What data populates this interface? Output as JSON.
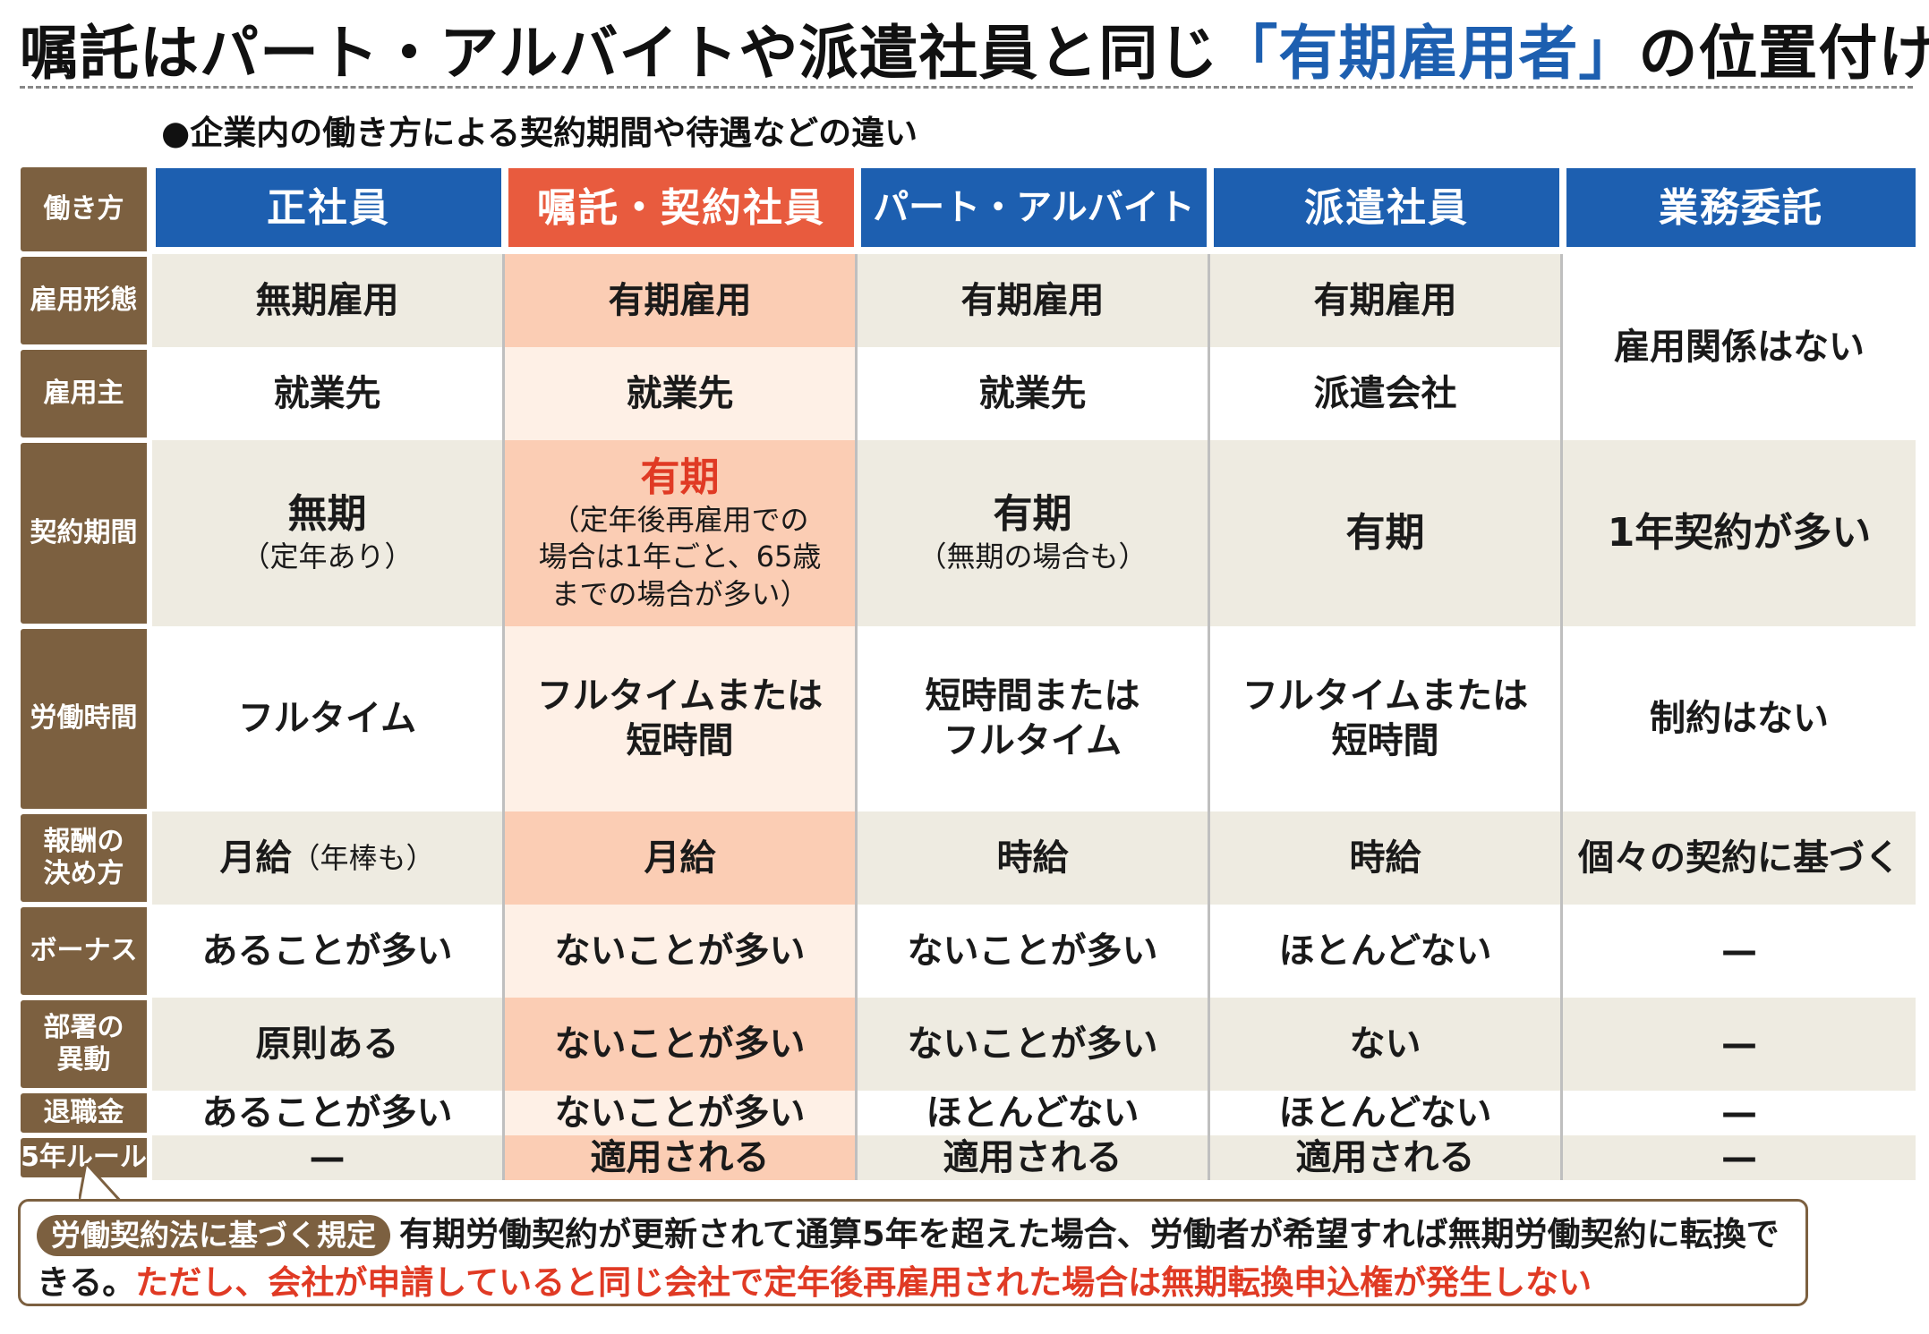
{
  "title": {
    "prefix": "嘱託はパート・アルバイトや派遣社員と同じ",
    "highlight": "「有期雇用者」",
    "suffix": "の位置付け"
  },
  "subtitle": "●企業内の働き方による契約期間や待遇などの違い",
  "table": {
    "corner_label": "働き方",
    "columns": [
      "正社員",
      "嘱託・契約社員",
      "パート・アルバイト",
      "派遣社員",
      "業務委託"
    ],
    "row_labels": [
      "雇用形態",
      "雇用主",
      "契約期間",
      "労働時間",
      "報酬の\n決め方",
      "ボーナス",
      "部署の\n異動",
      "退職金",
      "5年ルール"
    ],
    "employment_type": [
      "無期雇用",
      "有期雇用",
      "有期雇用",
      "有期雇用"
    ],
    "employer": [
      "就業先",
      "就業先",
      "就業先",
      "派遣会社"
    ],
    "contracting_merged": "雇用関係はない",
    "contract_period": [
      {
        "main": "無期",
        "note": "（定年あり）"
      },
      {
        "main": "有期",
        "note": "（定年後再雇用での\n場合は1年ごと、65歳\nまでの場合が多い）"
      },
      {
        "main": "有期",
        "note": "（無期の場合も）"
      },
      {
        "main": "有期",
        "note": ""
      },
      {
        "main": "1年契約が多い",
        "note": ""
      }
    ],
    "working_hours": [
      "フルタイム",
      "フルタイムまたは\n短時間",
      "短時間または\nフルタイム",
      "フルタイムまたは\n短時間",
      "制約はない"
    ],
    "pay_method": [
      {
        "main": "月給",
        "note": "（年棒も）"
      },
      {
        "main": "月給",
        "note": ""
      },
      {
        "main": "時給",
        "note": ""
      },
      {
        "main": "時給",
        "note": ""
      },
      {
        "main": "個々の契約に基づく",
        "note": ""
      }
    ],
    "bonus": [
      "あることが多い",
      "ないことが多い",
      "ないことが多い",
      "ほとんどない",
      "—"
    ],
    "transfer": [
      "原則ある",
      "ないことが多い",
      "ないことが多い",
      "ない",
      "—"
    ],
    "retirement_pay": [
      "あることが多い",
      "ないことが多い",
      "ほとんどない",
      "ほとんどない",
      "—"
    ],
    "five_year_rule": [
      "—",
      "適用される",
      "適用される",
      "適用される",
      "—"
    ]
  },
  "footnote": {
    "tag": "労働契約法に基づく規定",
    "text": "有期労働契約が更新されて通算5年を超えた場合、労働者が希望すれば無期労働契約に転換できる。",
    "warning": "ただし、会社が申請していると同じ会社で定年後再雇用された場合は無期転換申込権が発生しない"
  },
  "colors": {
    "header_blue": "#1d5fb0",
    "header_red": "#e85b3e",
    "label_brown": "#7c6040",
    "warning_red": "#e03a24"
  }
}
